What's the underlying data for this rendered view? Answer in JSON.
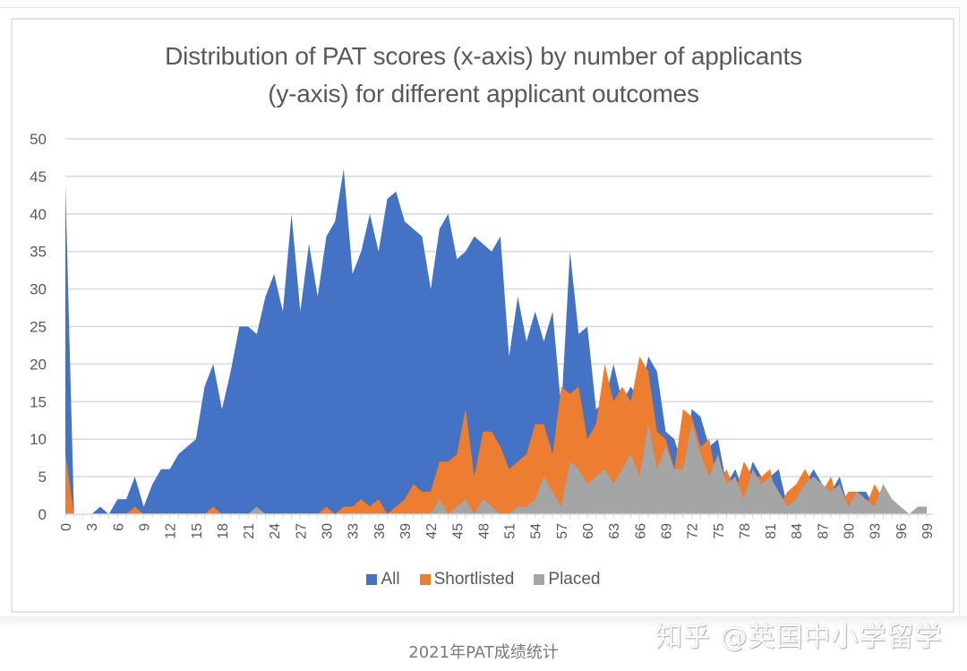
{
  "chart_data": {
    "type": "area",
    "title": "Distribution of PAT scores (x-axis) by number of applicants (y-axis) for different applicant outcomes",
    "title_lines": [
      "Distribution of PAT scores (x-axis) by number of applicants",
      "(y-axis) for different applicant outcomes"
    ],
    "xlabel": "",
    "ylabel": "",
    "ylim": [
      0,
      50
    ],
    "yticks": [
      0,
      5,
      10,
      15,
      20,
      25,
      30,
      35,
      40,
      45,
      50
    ],
    "xlim": [
      0,
      99
    ],
    "xtick_labels": [
      "0",
      "3",
      "6",
      "9",
      "12",
      "15",
      "18",
      "21",
      "24",
      "27",
      "30",
      "33",
      "36",
      "39",
      "42",
      "45",
      "48",
      "51",
      "54",
      "57",
      "60",
      "63",
      "66",
      "69",
      "72",
      "75",
      "78",
      "81",
      "84",
      "87",
      "90",
      "93",
      "96",
      "99"
    ],
    "grid": true,
    "legend_position": "bottom",
    "x": [
      0,
      1,
      2,
      3,
      4,
      5,
      6,
      7,
      8,
      9,
      10,
      11,
      12,
      13,
      14,
      15,
      16,
      17,
      18,
      19,
      20,
      21,
      22,
      23,
      24,
      25,
      26,
      27,
      28,
      29,
      30,
      31,
      32,
      33,
      34,
      35,
      36,
      37,
      38,
      39,
      40,
      41,
      42,
      43,
      44,
      45,
      46,
      47,
      48,
      49,
      50,
      51,
      52,
      53,
      54,
      55,
      56,
      57,
      58,
      59,
      60,
      61,
      62,
      63,
      64,
      65,
      66,
      67,
      68,
      69,
      70,
      71,
      72,
      73,
      74,
      75,
      76,
      77,
      78,
      79,
      80,
      81,
      82,
      83,
      84,
      85,
      86,
      87,
      88,
      89,
      90,
      91,
      92,
      93,
      94,
      95,
      96,
      97,
      98,
      99
    ],
    "series": [
      {
        "name": "All",
        "color": "#4472c4",
        "values": [
          44,
          0,
          0,
          0,
          1,
          0,
          2,
          2,
          5,
          1,
          4,
          6,
          6,
          8,
          9,
          10,
          17,
          20,
          14,
          19,
          25,
          25,
          24,
          29,
          32,
          27,
          40,
          27,
          36,
          29,
          37,
          39,
          46,
          32,
          35,
          40,
          35,
          42,
          43,
          39,
          38,
          37,
          30,
          38,
          40,
          34,
          35,
          37,
          36,
          35,
          37,
          21,
          29,
          23,
          27,
          23,
          27,
          14,
          35,
          24,
          25,
          14,
          15,
          20,
          15,
          17,
          15,
          21,
          19,
          11,
          10,
          6,
          14,
          13,
          9,
          10,
          4,
          6,
          3,
          7,
          5,
          5,
          6,
          1,
          3,
          4,
          6,
          4,
          3,
          5,
          1,
          3,
          3,
          1,
          4,
          2,
          1,
          0,
          1,
          1
        ]
      },
      {
        "name": "Shortlisted",
        "color": "#ed7d31",
        "values": [
          8,
          0,
          0,
          0,
          0,
          0,
          0,
          0,
          1,
          0,
          0,
          0,
          0,
          0,
          0,
          0,
          0,
          1,
          0,
          0,
          0,
          0,
          0,
          0,
          0,
          0,
          0,
          0,
          0,
          0,
          1,
          0,
          1,
          1,
          2,
          1,
          2,
          0,
          1,
          2,
          4,
          3,
          3,
          7,
          7,
          8,
          14,
          5,
          11,
          11,
          9,
          6,
          7,
          8,
          12,
          12,
          8,
          17,
          16,
          17,
          10,
          12,
          20,
          15,
          17,
          15,
          21,
          19,
          11,
          10,
          6,
          14,
          13,
          9,
          10,
          4,
          6,
          3,
          7,
          5,
          5,
          6,
          1,
          3,
          4,
          6,
          4,
          3,
          5,
          1,
          3,
          3,
          1,
          4,
          2,
          1,
          0,
          0,
          1,
          1
        ]
      },
      {
        "name": "Placed",
        "color": "#a5a5a5",
        "values": [
          0,
          0,
          0,
          0,
          0,
          0,
          0,
          0,
          0,
          0,
          0,
          0,
          0,
          0,
          0,
          0,
          0,
          0,
          0,
          0,
          0,
          0,
          1,
          0,
          0,
          0,
          0,
          0,
          0,
          0,
          0,
          0,
          0,
          0,
          0,
          0,
          0,
          0,
          0,
          0,
          0,
          0,
          0,
          2,
          0,
          1,
          2,
          0,
          2,
          1,
          0,
          0,
          1,
          1,
          2,
          5,
          3,
          1,
          7,
          6,
          4,
          5,
          6,
          4,
          6,
          8,
          5,
          12,
          6,
          9,
          6,
          6,
          12,
          8,
          5,
          8,
          4,
          5,
          2,
          6,
          4,
          5,
          3,
          1,
          2,
          4,
          5,
          4,
          3,
          4,
          1,
          3,
          2,
          1,
          4,
          2,
          1,
          0,
          1,
          1
        ]
      }
    ]
  },
  "legend": {
    "items": [
      {
        "label": "All",
        "color": "#4472c4"
      },
      {
        "label": "Shortlisted",
        "color": "#ed7d31"
      },
      {
        "label": "Placed",
        "color": "#a5a5a5"
      }
    ]
  },
  "watermark": "知乎 @英国中小学留学",
  "caption": "2021年PAT成绩统计"
}
